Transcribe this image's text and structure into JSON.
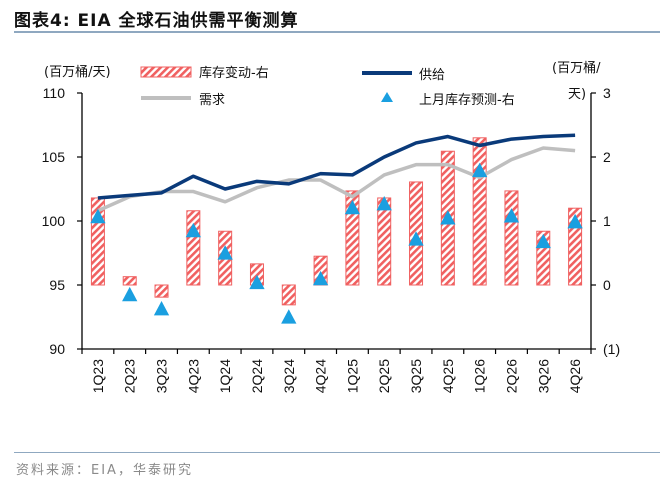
{
  "header": {
    "title": "图表4:  EIA 全球石油供需平衡测算"
  },
  "footer": {
    "source": "资料来源：EIA，华泰研究"
  },
  "colors": {
    "supply": "#0a3a7a",
    "demand": "#bfbfbf",
    "bar_stroke": "#f06060",
    "bar_stripe": "#f06060",
    "triangle": "#1a9fe0",
    "axis": "#000000",
    "rule": "#8fa8c0"
  },
  "chart_data": {
    "type": "bar",
    "title": "EIA 全球石油供需平衡测算",
    "left_axis_unit": "(百万桶/天)",
    "right_axis_unit_line1": "(百万桶/",
    "right_axis_unit_line2": "天)",
    "categories": [
      "1Q23",
      "2Q23",
      "3Q23",
      "4Q23",
      "1Q24",
      "2Q24",
      "3Q24",
      "4Q24",
      "1Q25",
      "2Q25",
      "3Q25",
      "4Q25",
      "1Q26",
      "2Q26",
      "3Q26",
      "4Q26"
    ],
    "ylim_left": [
      90,
      110
    ],
    "yticks_left": [
      90,
      95,
      100,
      105,
      110
    ],
    "ytick_labels_left": [
      "90",
      "95",
      "100",
      "105",
      "110"
    ],
    "ylim_right": [
      -1,
      3
    ],
    "yticks_right": [
      -1,
      0,
      1,
      2,
      3
    ],
    "ytick_labels_right": [
      "(1)",
      "0",
      "1",
      "2",
      "3"
    ],
    "grid": false,
    "legend_position": "top",
    "series": [
      {
        "name": "库存变动-右",
        "type": "bar",
        "axis": "right",
        "values": [
          1.36,
          0.13,
          -0.19,
          1.16,
          0.84,
          0.33,
          -0.31,
          0.45,
          1.47,
          1.36,
          1.61,
          2.09,
          2.3,
          1.47,
          0.84,
          1.2
        ]
      },
      {
        "name": "供给",
        "type": "line",
        "axis": "left",
        "values": [
          101.8,
          102.0,
          102.2,
          103.5,
          102.5,
          103.1,
          102.9,
          103.7,
          103.6,
          105.0,
          106.1,
          106.6,
          105.9,
          106.4,
          106.6,
          106.7
        ]
      },
      {
        "name": "需求",
        "type": "line",
        "axis": "left",
        "values": [
          100.8,
          101.9,
          102.3,
          102.3,
          101.5,
          102.6,
          103.2,
          103.2,
          101.9,
          103.6,
          104.4,
          104.4,
          103.4,
          104.8,
          105.7,
          105.5
        ]
      },
      {
        "name": "上月库存预测-右",
        "type": "scatter",
        "marker": "triangle",
        "axis": "right",
        "values": [
          1.05,
          -0.17,
          -0.39,
          0.83,
          0.48,
          0.02,
          -0.52,
          0.08,
          1.19,
          1.25,
          0.7,
          1.03,
          1.77,
          1.06,
          0.66,
          0.97
        ]
      }
    ]
  }
}
